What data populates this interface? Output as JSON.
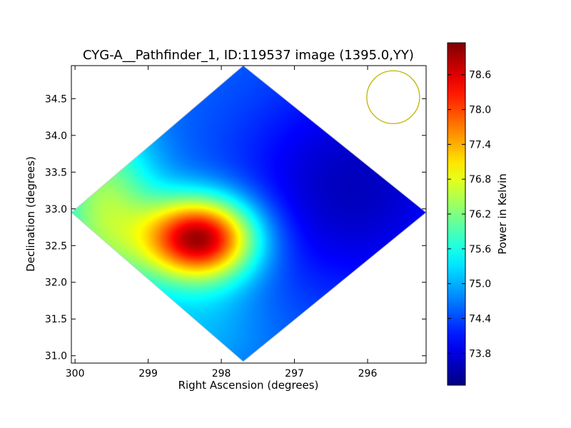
{
  "chart_data": {
    "type": "heatmap",
    "title": "CYG-A__Pathfinder_1, ID:119537 image (1395.0,YY)",
    "xlabel": "Right Ascension (degrees)",
    "ylabel": "Declination (degrees)",
    "xlim": [
      300.05,
      295.2
    ],
    "ylim": [
      30.9,
      34.95
    ],
    "x_inverted": true,
    "xticks": [
      300,
      299,
      298,
      297,
      296
    ],
    "xtick_labels": [
      "300",
      "299",
      "298",
      "297",
      "296"
    ],
    "yticks": [
      31.0,
      31.5,
      32.0,
      32.5,
      33.0,
      33.5,
      34.0,
      34.5
    ],
    "ytick_labels": [
      "31.0",
      "31.5",
      "32.0",
      "32.5",
      "33.0",
      "33.5",
      "34.0",
      "34.5"
    ],
    "colorbar": {
      "label": "Power in Kelvin",
      "colormap": "jet",
      "range": [
        73.25,
        79.15
      ],
      "ticks": [
        73.8,
        74.4,
        75.0,
        75.6,
        76.2,
        76.8,
        77.4,
        78.0,
        78.6
      ],
      "tick_labels": [
        "73.8",
        "74.4",
        "75.0",
        "75.6",
        "76.2",
        "76.8",
        "77.4",
        "78.0",
        "78.6"
      ]
    },
    "footprint": {
      "shape": "diamond",
      "vertices_deg": [
        [
          297.7,
          34.95
        ],
        [
          295.2,
          32.95
        ],
        [
          297.7,
          30.92
        ],
        [
          300.05,
          32.95
        ]
      ]
    },
    "beam_marker": {
      "shape": "circle",
      "center_deg": [
        295.65,
        34.52
      ],
      "color": "#c0b400"
    },
    "features": [
      {
        "description": "peak hot spot",
        "center_deg": [
          298.3,
          32.6
        ],
        "value": 79.0
      },
      {
        "description": "cold region",
        "center_deg": [
          296.2,
          33.3
        ],
        "value": 73.6
      }
    ],
    "grid": false
  }
}
